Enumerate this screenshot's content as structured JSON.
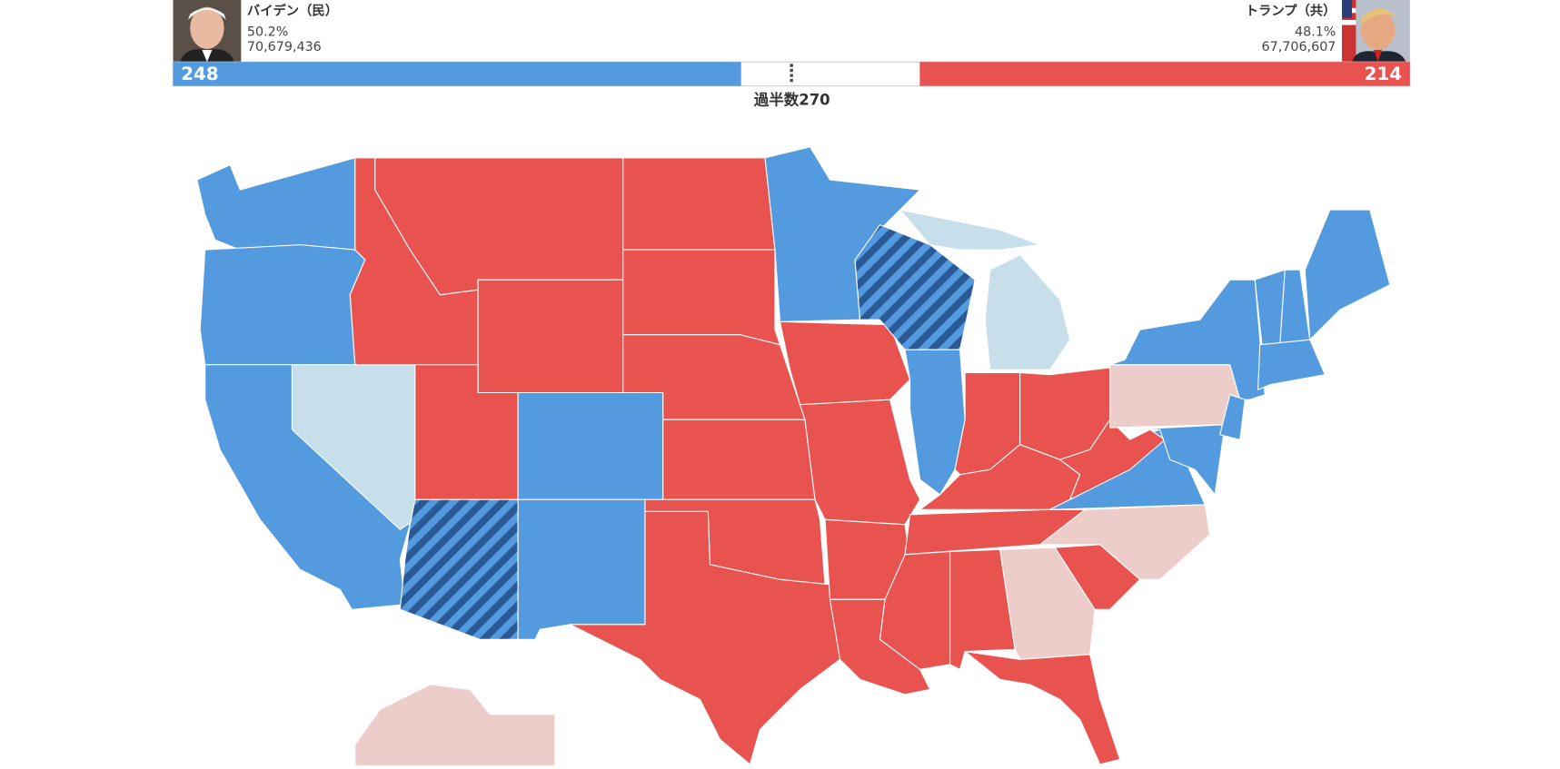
{
  "candidates": [
    {
      "name": "バイデン（民）",
      "vote_share": "50.2%",
      "popular_vote": "70,679,436",
      "electoral_votes": 248
    },
    {
      "name": "トランプ（共）",
      "vote_share": "48.1%",
      "popular_vote": "67,706,607",
      "electoral_votes": 214
    }
  ],
  "majority": {
    "label": "過半数",
    "value": 270
  }
}
